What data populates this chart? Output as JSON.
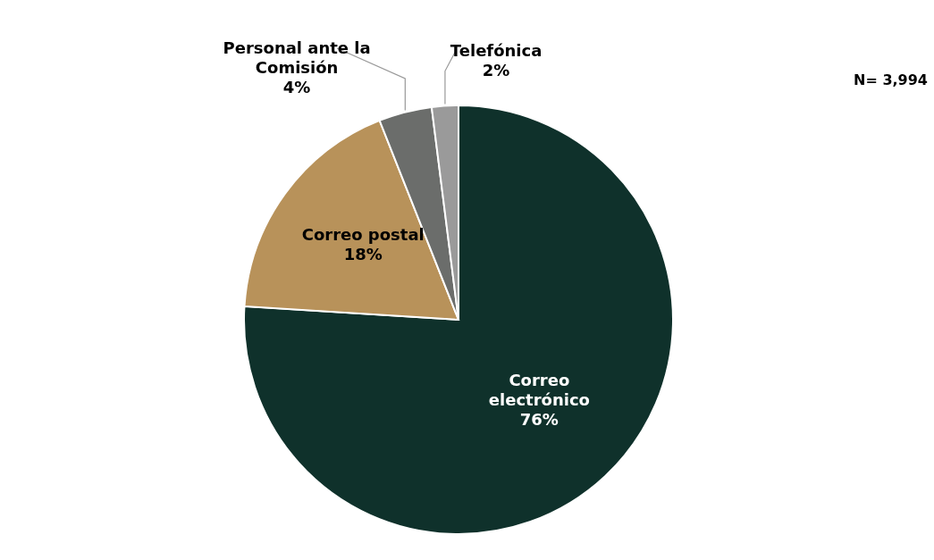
{
  "chart_data": {
    "type": "pie",
    "categories": [
      "Correo electrónico",
      "Correo postal",
      "Personal ante la Comisión",
      "Telefónica"
    ],
    "values": [
      76,
      18,
      4,
      2
    ],
    "colors": [
      "#0f312b",
      "#b8925a",
      "#6b6d6b",
      "#9a9a9a"
    ],
    "value_labels": [
      "76%",
      "18%",
      "4%",
      "2%"
    ],
    "legend": false,
    "annotations": [
      "N= 3,994"
    ]
  }
}
